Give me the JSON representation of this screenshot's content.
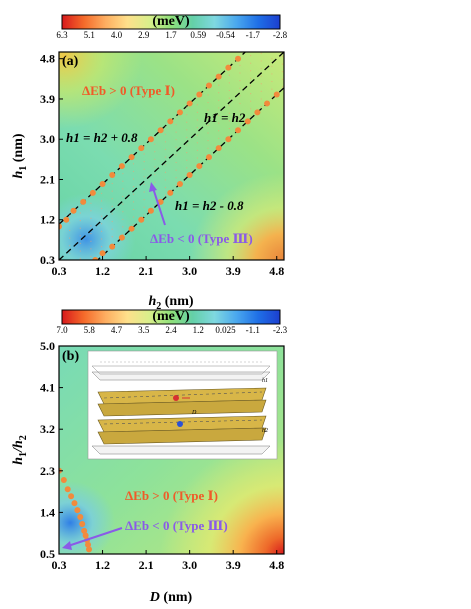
{
  "chart_data": [
    {
      "panel": "(a)",
      "type": "heatmap",
      "colorbar": {
        "title": "(meV)",
        "tick_labels": [
          "6.3",
          "5.1",
          "4.0",
          "2.9",
          "1.7",
          "0.59",
          "-0.54",
          "-1.7",
          "-2.8"
        ],
        "range": [
          -2.8,
          6.3
        ],
        "colormap": [
          "#d7191c",
          "#f56a2a",
          "#fdae61",
          "#fee08b",
          "#d9ef8b",
          "#8fe07a",
          "#64d0a8",
          "#7fd8e0",
          "#4aa8ee",
          "#1f6fe6",
          "#1c3fd0"
        ]
      },
      "xlabel_var": "h",
      "xlabel_sub": "2",
      "xlabel_unit": " (nm)",
      "ylabel_var": "h",
      "ylabel_sub": "1",
      "ylabel_unit": " (nm)",
      "xlim": [
        0.3,
        4.95
      ],
      "ylim": [
        0.3,
        4.95
      ],
      "xticks": [
        "0.3",
        "1.2",
        "2.1",
        "3.0",
        "3.9",
        "4.8"
      ],
      "yticks": [
        "0.3",
        "1.2",
        "2.1",
        "3.0",
        "3.9",
        "4.8"
      ],
      "lines": [
        {
          "name": "h1 = h2 + 0.8",
          "slope": 1,
          "intercept": 0.8,
          "style": "dashed"
        },
        {
          "name": "h1 = h2",
          "slope": 1,
          "intercept": 0,
          "style": "dashed"
        },
        {
          "name": "h1 = h2 - 0.8",
          "slope": 1,
          "intercept": -0.8,
          "style": "dashed"
        }
      ],
      "boundary_upper": {
        "x": [
          0.3,
          0.45,
          0.6,
          0.8,
          1.0,
          1.2,
          1.4,
          1.6,
          1.8,
          2.0,
          2.2,
          2.4,
          2.6,
          2.8,
          3.0,
          3.2,
          3.4,
          3.6,
          3.8,
          4.0
        ],
        "y": [
          1.05,
          1.2,
          1.4,
          1.6,
          1.8,
          2.0,
          2.2,
          2.4,
          2.6,
          2.8,
          3.0,
          3.2,
          3.4,
          3.6,
          3.8,
          4.0,
          4.2,
          4.4,
          4.6,
          4.8
        ]
      },
      "boundary_lower": {
        "x": [
          1.05,
          1.2,
          1.4,
          1.6,
          1.8,
          2.0,
          2.2,
          2.4,
          2.6,
          2.8,
          3.0,
          3.2,
          3.4,
          3.6,
          3.8,
          4.0,
          4.2,
          4.4,
          4.6,
          4.8
        ],
        "y": [
          0.3,
          0.45,
          0.6,
          0.8,
          1.0,
          1.2,
          1.4,
          1.6,
          1.8,
          2.0,
          2.2,
          2.4,
          2.6,
          2.8,
          3.0,
          3.2,
          3.4,
          3.6,
          3.8,
          4.0
        ]
      },
      "annotations": {
        "region_pos": "ΔEb > 0 (Type Ⅰ)",
        "region_neg": "ΔEb < 0 (Type Ⅲ)",
        "line_upper": "h1 = h2 + 0.8",
        "line_mid": "h1 = h2",
        "line_lower": "h1 = h2 - 0.8"
      }
    },
    {
      "panel": "(b)",
      "type": "heatmap",
      "colorbar": {
        "title": "(meV)",
        "tick_labels": [
          "7.0",
          "5.8",
          "4.7",
          "3.5",
          "2.4",
          "1.2",
          "0.025",
          "-1.1",
          "-2.3"
        ],
        "range": [
          -2.3,
          7.0
        ],
        "colormap": [
          "#d7191c",
          "#f56a2a",
          "#fdae61",
          "#fee08b",
          "#d9ef8b",
          "#8fe07a",
          "#64d0a8",
          "#7fd8e0",
          "#4aa8ee",
          "#1f6fe6",
          "#1c3fd0"
        ]
      },
      "xlabel_var": "D",
      "xlabel_sub": "",
      "xlabel_unit": " (nm)",
      "ylabel_var": "h",
      "ylabel_sub": "1",
      "ylabel_sep": "/h",
      "ylabel_sub2": "2",
      "xlim": [
        0.3,
        4.95
      ],
      "ylim": [
        0.5,
        5.0
      ],
      "xticks": [
        "0.3",
        "1.2",
        "2.1",
        "3.0",
        "3.9",
        "4.8"
      ],
      "yticks": [
        "0.5",
        "1.4",
        "2.3",
        "3.2",
        "4.1",
        "5.0"
      ],
      "boundary": {
        "x": [
          0.3,
          0.4,
          0.48,
          0.55,
          0.62,
          0.68,
          0.74,
          0.78,
          0.82,
          0.85,
          0.88,
          0.9,
          0.92
        ],
        "y": [
          2.3,
          2.1,
          1.9,
          1.75,
          1.6,
          1.45,
          1.3,
          1.15,
          1.0,
          0.9,
          0.8,
          0.7,
          0.6
        ]
      },
      "annotations": {
        "region_pos": "ΔEb > 0 (Type Ⅰ)",
        "region_neg": "ΔEb < 0 (Type Ⅲ)"
      },
      "inset": {
        "labels": [
          "h1",
          "D",
          "h2"
        ]
      }
    }
  ]
}
